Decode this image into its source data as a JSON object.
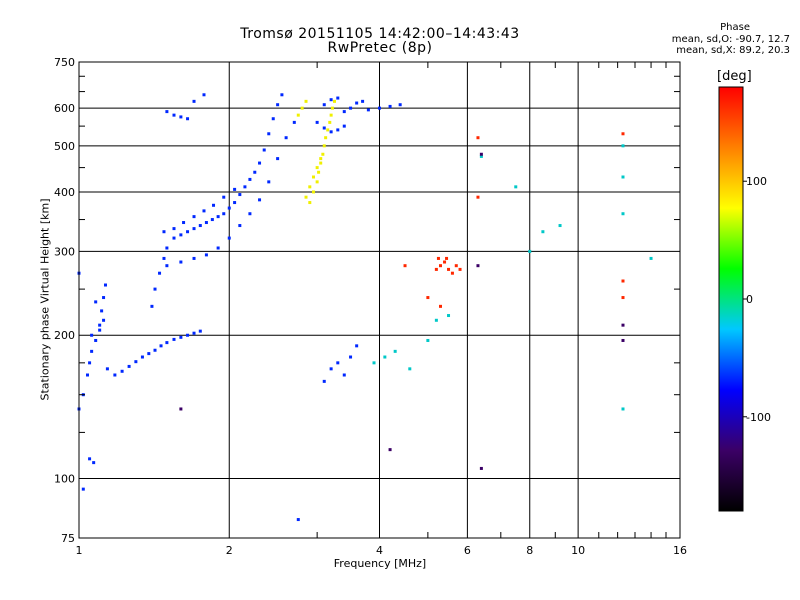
{
  "chart_data": {
    "type": "scatter",
    "title": "Tromsø 20151105 14:42:00–14:43:43",
    "subtitle": "RwPretec (8p)",
    "xlabel": "Frequency [MHz]",
    "ylabel": "Stationary phase Virtual Height [km]",
    "xscale": "log",
    "yscale": "log",
    "xlim": [
      1,
      16
    ],
    "ylim": [
      75,
      750
    ],
    "x_ticks": [
      1,
      2,
      4,
      6,
      8,
      10,
      16
    ],
    "x_tick_labels": [
      "1",
      "2",
      "4",
      "6",
      "8",
      "10",
      "16"
    ],
    "y_ticks": [
      75,
      100,
      200,
      300,
      400,
      500,
      600,
      750
    ],
    "y_tick_labels": [
      "75",
      "100",
      "200",
      "300",
      "400",
      "500",
      "600",
      "750"
    ],
    "grid": true,
    "stats": {
      "heading": "Phase",
      "line1": "mean, sd,O: -90.7, 12.7",
      "line2": "mean, sd,X:  89.2, 20.3"
    },
    "colorbar": {
      "label": "[deg]",
      "range": [
        -180,
        180
      ],
      "tick_values": [
        100,
        0,
        -100
      ],
      "tick_labels": [
        "100",
        "0",
        "-100"
      ],
      "colors": [
        "#000000",
        "#3b0066",
        "#0000ff",
        "#00c8ff",
        "#00ff00",
        "#ffff00",
        "#ff8000",
        "#ff0000"
      ]
    },
    "series": [
      {
        "points": [
          [
            1.0,
            140
          ],
          [
            1.02,
            150
          ],
          [
            1.04,
            165
          ],
          [
            1.05,
            175
          ],
          [
            1.06,
            185
          ],
          [
            1.08,
            195
          ],
          [
            1.1,
            205
          ],
          [
            1.12,
            215
          ],
          [
            1.14,
            170
          ],
          [
            1.18,
            165
          ],
          [
            1.22,
            168
          ],
          [
            1.26,
            172
          ],
          [
            1.3,
            176
          ],
          [
            1.34,
            180
          ],
          [
            1.38,
            183
          ],
          [
            1.42,
            186
          ],
          [
            1.46,
            190
          ],
          [
            1.5,
            193
          ],
          [
            1.55,
            196
          ],
          [
            1.6,
            198
          ],
          [
            1.65,
            200
          ],
          [
            1.7,
            202
          ],
          [
            1.75,
            204
          ],
          [
            1.4,
            230
          ],
          [
            1.42,
            250
          ],
          [
            1.45,
            270
          ],
          [
            1.48,
            290
          ],
          [
            1.5,
            305
          ],
          [
            1.55,
            320
          ],
          [
            1.6,
            325
          ],
          [
            1.65,
            330
          ],
          [
            1.7,
            335
          ],
          [
            1.75,
            340
          ],
          [
            1.8,
            345
          ],
          [
            1.85,
            350
          ],
          [
            1.9,
            355
          ],
          [
            1.95,
            360
          ],
          [
            2.0,
            370
          ],
          [
            2.05,
            380
          ],
          [
            2.1,
            395
          ],
          [
            2.15,
            410
          ],
          [
            2.2,
            425
          ],
          [
            2.25,
            440
          ],
          [
            2.3,
            460
          ],
          [
            2.35,
            490
          ],
          [
            2.4,
            530
          ],
          [
            2.45,
            570
          ],
          [
            2.5,
            610
          ],
          [
            2.55,
            640
          ],
          [
            1.5,
            280
          ],
          [
            1.6,
            285
          ],
          [
            1.7,
            290
          ],
          [
            1.8,
            295
          ],
          [
            1.9,
            305
          ],
          [
            2.0,
            320
          ],
          [
            2.1,
            340
          ],
          [
            2.2,
            360
          ],
          [
            2.3,
            385
          ],
          [
            2.4,
            420
          ],
          [
            2.5,
            470
          ],
          [
            2.6,
            520
          ],
          [
            2.7,
            560
          ],
          [
            1.48,
            330
          ],
          [
            1.55,
            335
          ],
          [
            1.62,
            345
          ],
          [
            1.7,
            355
          ],
          [
            1.78,
            365
          ],
          [
            1.86,
            375
          ],
          [
            1.95,
            390
          ],
          [
            2.05,
            405
          ],
          [
            1.1,
            210
          ],
          [
            1.11,
            225
          ],
          [
            1.12,
            240
          ],
          [
            1.13,
            255
          ],
          [
            1.08,
            235
          ],
          [
            1.06,
            200
          ],
          [
            1.5,
            590
          ],
          [
            1.55,
            580
          ],
          [
            1.6,
            575
          ],
          [
            1.65,
            570
          ],
          [
            1.7,
            620
          ],
          [
            1.78,
            640
          ],
          [
            3.1,
            610
          ],
          [
            3.2,
            625
          ],
          [
            3.3,
            630
          ],
          [
            3.4,
            590
          ],
          [
            3.5,
            600
          ],
          [
            3.6,
            615
          ],
          [
            3.7,
            620
          ],
          [
            3.8,
            595
          ],
          [
            4.0,
            600
          ],
          [
            4.2,
            605
          ],
          [
            4.4,
            610
          ],
          [
            3.0,
            560
          ],
          [
            3.1,
            545
          ],
          [
            3.2,
            535
          ],
          [
            3.3,
            540
          ],
          [
            3.4,
            550
          ],
          [
            3.1,
            160
          ],
          [
            3.2,
            170
          ],
          [
            3.3,
            175
          ],
          [
            3.4,
            165
          ],
          [
            3.5,
            180
          ],
          [
            3.6,
            190
          ],
          [
            1.05,
            110
          ],
          [
            1.07,
            108
          ],
          [
            1.02,
            95
          ],
          [
            1.0,
            270
          ],
          [
            2.75,
            82
          ]
        ],
        "color": "#0028ff"
      },
      {
        "points": [
          [
            2.9,
            380
          ],
          [
            2.95,
            400
          ],
          [
            3.0,
            420
          ],
          [
            3.02,
            440
          ],
          [
            3.05,
            460
          ],
          [
            3.08,
            480
          ],
          [
            3.1,
            500
          ],
          [
            3.12,
            520
          ],
          [
            3.15,
            540
          ],
          [
            3.18,
            560
          ],
          [
            3.2,
            580
          ],
          [
            3.22,
            600
          ],
          [
            3.25,
            620
          ],
          [
            2.85,
            390
          ],
          [
            2.9,
            410
          ],
          [
            2.95,
            430
          ],
          [
            3.0,
            450
          ],
          [
            3.05,
            470
          ],
          [
            2.8,
            600
          ],
          [
            2.85,
            620
          ],
          [
            2.75,
            580
          ]
        ],
        "color": "#f0f000"
      },
      {
        "points": [
          [
            5.2,
            275
          ],
          [
            5.3,
            280
          ],
          [
            5.4,
            285
          ],
          [
            5.5,
            275
          ],
          [
            5.6,
            270
          ],
          [
            5.7,
            280
          ],
          [
            5.8,
            275
          ],
          [
            5.25,
            290
          ],
          [
            5.45,
            290
          ],
          [
            4.5,
            280
          ],
          [
            5.0,
            240
          ],
          [
            5.3,
            230
          ],
          [
            6.3,
            520
          ],
          [
            6.3,
            390
          ],
          [
            12.3,
            530
          ],
          [
            12.3,
            240
          ],
          [
            12.3,
            260
          ]
        ],
        "color": "#ff2800"
      },
      {
        "points": [
          [
            4.1,
            180
          ],
          [
            4.3,
            185
          ],
          [
            5.0,
            195
          ],
          [
            5.2,
            215
          ],
          [
            5.5,
            220
          ],
          [
            3.9,
            175
          ],
          [
            4.6,
            170
          ],
          [
            12.3,
            140
          ],
          [
            12.3,
            360
          ],
          [
            12.3,
            500
          ],
          [
            12.3,
            430
          ],
          [
            6.4,
            475
          ],
          [
            7.5,
            410
          ],
          [
            8.5,
            330
          ],
          [
            9.2,
            340
          ],
          [
            8.0,
            300
          ],
          [
            14.0,
            290
          ]
        ],
        "color": "#00c8c8"
      },
      {
        "points": [
          [
            12.3,
            195
          ],
          [
            12.3,
            210
          ],
          [
            6.4,
            105
          ],
          [
            4.2,
            115
          ],
          [
            1.6,
            140
          ],
          [
            6.4,
            480
          ],
          [
            6.3,
            280
          ]
        ],
        "color": "#3b0066"
      }
    ]
  }
}
